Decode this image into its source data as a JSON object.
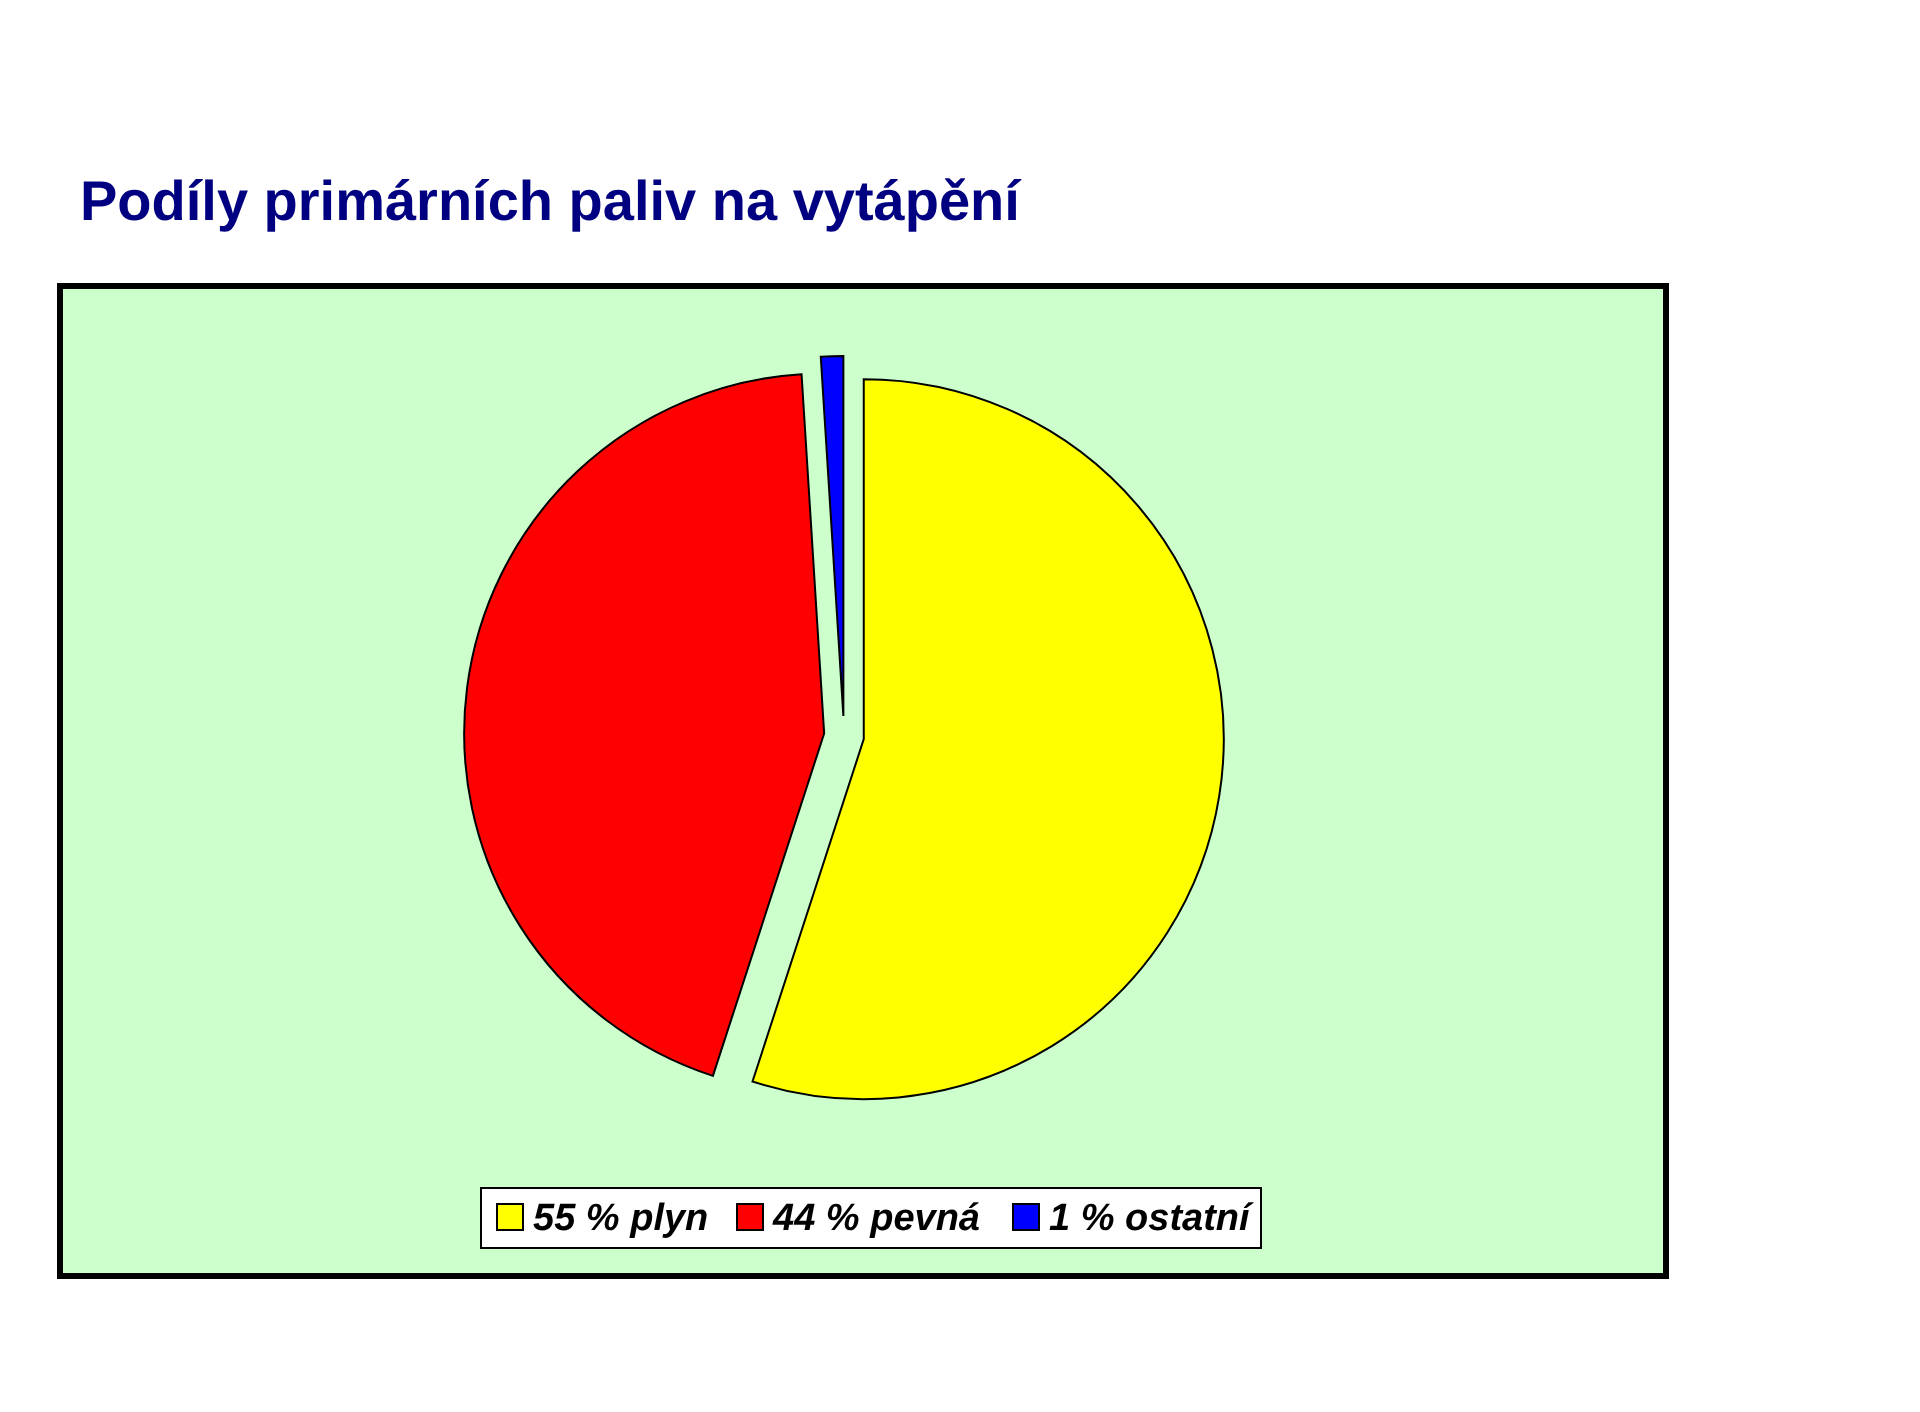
{
  "chart_data": {
    "type": "pie",
    "title": "Podíly primárních paliv na vytápění",
    "categories": [
      "55 % plyn",
      "44 % pevná",
      "1 % ostatní"
    ],
    "values": [
      55,
      44,
      1
    ],
    "colors": [
      "#ffff00",
      "#ff0000",
      "#0000ff"
    ],
    "legend": "bottom"
  }
}
